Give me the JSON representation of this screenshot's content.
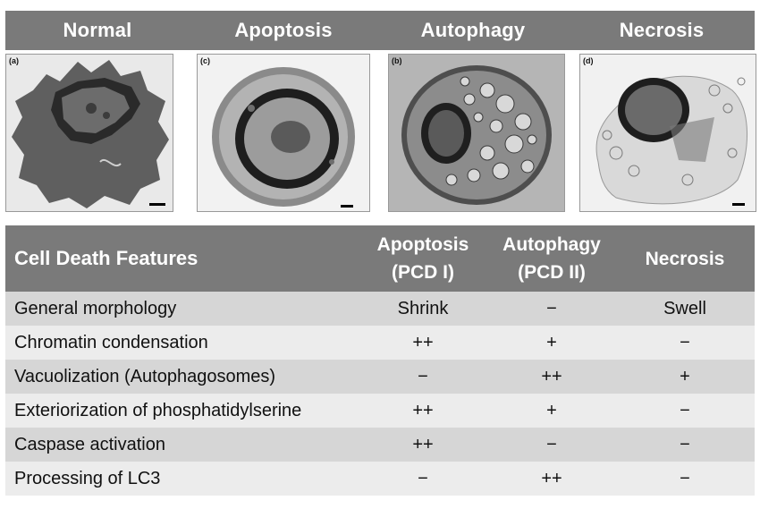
{
  "panels": [
    {
      "title": "Normal",
      "label": "(a)"
    },
    {
      "title": "Apoptosis",
      "label": "(c)"
    },
    {
      "title": "Autophagy",
      "label": "(b)"
    },
    {
      "title": "Necrosis",
      "label": "(d)"
    }
  ],
  "table": {
    "header": {
      "features": "Cell Death Features",
      "apoptosis_line1": "Apoptosis",
      "apoptosis_line2": "(PCD I)",
      "autophagy_line1": "Autophagy",
      "autophagy_line2": "(PCD II)",
      "necrosis": "Necrosis"
    },
    "rows": [
      {
        "feature": "General morphology",
        "apoptosis": "Shrink",
        "autophagy": "−",
        "necrosis": "Swell"
      },
      {
        "feature": "Chromatin condensation",
        "apoptosis": "++",
        "autophagy": "+",
        "necrosis": "−"
      },
      {
        "feature": "Vacuolization (Autophagosomes)",
        "apoptosis": "−",
        "autophagy": "++",
        "necrosis": "+"
      },
      {
        "feature": "Exteriorization of phosphatidylserine",
        "apoptosis": "++",
        "autophagy": "+",
        "necrosis": "−"
      },
      {
        "feature": "Caspase activation",
        "apoptosis": "++",
        "autophagy": "−",
        "necrosis": "−"
      },
      {
        "feature": "Processing of LC3",
        "apoptosis": "−",
        "autophagy": "++",
        "necrosis": "−"
      }
    ]
  }
}
